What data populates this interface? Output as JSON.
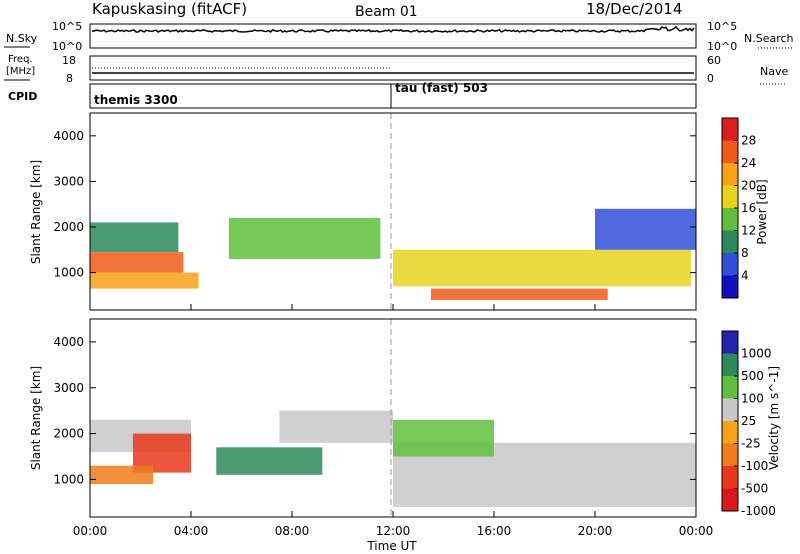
{
  "header": {
    "station": "Kapuskasing (fitACF)",
    "beam": "Beam 01",
    "date": "18/Dec/2014"
  },
  "nsky_panel": {
    "left_label": "N.Sky",
    "right_label": "N.Search",
    "tick_top": "10^5",
    "tick_bottom": "10^0"
  },
  "freq_panel": {
    "left_label_1": "Freq.",
    "left_label_2": "[MHz]",
    "left_tick_top": "18",
    "left_tick_bottom": "8",
    "right_label": "Nave",
    "right_tick_top": "60",
    "right_tick_bottom": "0"
  },
  "cpid_panel": {
    "label": "CPID",
    "mode_1": "themis 3300",
    "mode_2": "tau (fast) 503",
    "switch_time": "12:00"
  },
  "x_axis": {
    "label": "Time UT",
    "ticks": [
      "00:00",
      "04:00",
      "08:00",
      "12:00",
      "16:00",
      "20:00",
      "00:00"
    ]
  },
  "power_panel": {
    "ylabel": "Slant Range [km]",
    "yticks": [
      "1000",
      "2000",
      "3000",
      "4000"
    ],
    "colorbar_label": "Power [dB]",
    "colorbar_ticks": [
      "4",
      "8",
      "12",
      "16",
      "20",
      "24",
      "28"
    ],
    "colors": [
      "#1010c0",
      "#3050d8",
      "#2b8a5a",
      "#5fbf3a",
      "#e6d21f",
      "#f5a218",
      "#ef5a1b",
      "#dc1e1e"
    ]
  },
  "velocity_panel": {
    "ylabel": "Slant Range [km]",
    "yticks": [
      "1000",
      "2000",
      "3000",
      "4000"
    ],
    "colorbar_label": "Velocity [m s^-1]",
    "colorbar_ticks": [
      "1000",
      "500",
      "100",
      "25",
      "-25",
      "-100",
      "-500",
      "-1000"
    ],
    "colors": [
      "#2323b0",
      "#2d8a5a",
      "#5fc040",
      "#c8c8c8",
      "#f5a218",
      "#ef7b1b",
      "#e63a1b",
      "#d91818"
    ]
  },
  "chart_data": [
    {
      "type": "heatmap",
      "name": "Power",
      "x_range_hours": [
        0,
        24
      ],
      "y_range_km": [
        180,
        4500
      ],
      "colorbar_range_db": [
        0,
        31
      ],
      "regions": [
        {
          "t_start": 0.0,
          "t_end": 3.7,
          "range_km": [
            1000,
            1450
          ],
          "power_db": 26
        },
        {
          "t_start": 0.0,
          "t_end": 4.3,
          "range_km": [
            650,
            1000
          ],
          "power_db": 20
        },
        {
          "t_start": 0.0,
          "t_end": 3.5,
          "range_km": [
            1450,
            2100
          ],
          "power_db": 10
        },
        {
          "t_start": 5.5,
          "t_end": 11.5,
          "range_km": [
            1300,
            2200
          ],
          "power_db": 14
        },
        {
          "t_start": 12.0,
          "t_end": 23.8,
          "range_km": [
            700,
            1500
          ],
          "power_db": 18
        },
        {
          "t_start": 13.5,
          "t_end": 20.5,
          "range_km": [
            400,
            650
          ],
          "power_db": 27
        },
        {
          "t_start": 20.0,
          "t_end": 24.0,
          "range_km": [
            1500,
            2400
          ],
          "power_db": 6
        }
      ]
    },
    {
      "type": "heatmap",
      "name": "Velocity",
      "x_range_hours": [
        0,
        24
      ],
      "y_range_km": [
        180,
        4500
      ],
      "colorbar_range_ms": [
        -1000,
        1000
      ],
      "regions": [
        {
          "t_start": 0.0,
          "t_end": 4.0,
          "range_km": [
            1600,
            2300
          ],
          "velocity": 0
        },
        {
          "t_start": 1.7,
          "t_end": 4.0,
          "range_km": [
            1150,
            2000
          ],
          "velocity": -600
        },
        {
          "t_start": 0.0,
          "t_end": 2.5,
          "range_km": [
            900,
            1300
          ],
          "velocity": -150
        },
        {
          "t_start": 5.0,
          "t_end": 9.2,
          "range_km": [
            1100,
            1700
          ],
          "velocity": 400
        },
        {
          "t_start": 7.5,
          "t_end": 12.0,
          "range_km": [
            1800,
            2500
          ],
          "velocity": 0
        },
        {
          "t_start": 12.0,
          "t_end": 24.0,
          "range_km": [
            400,
            1800
          ],
          "velocity": 0
        },
        {
          "t_start": 12.0,
          "t_end": 16.0,
          "range_km": [
            1500,
            2300
          ],
          "velocity": 90
        }
      ]
    }
  ]
}
